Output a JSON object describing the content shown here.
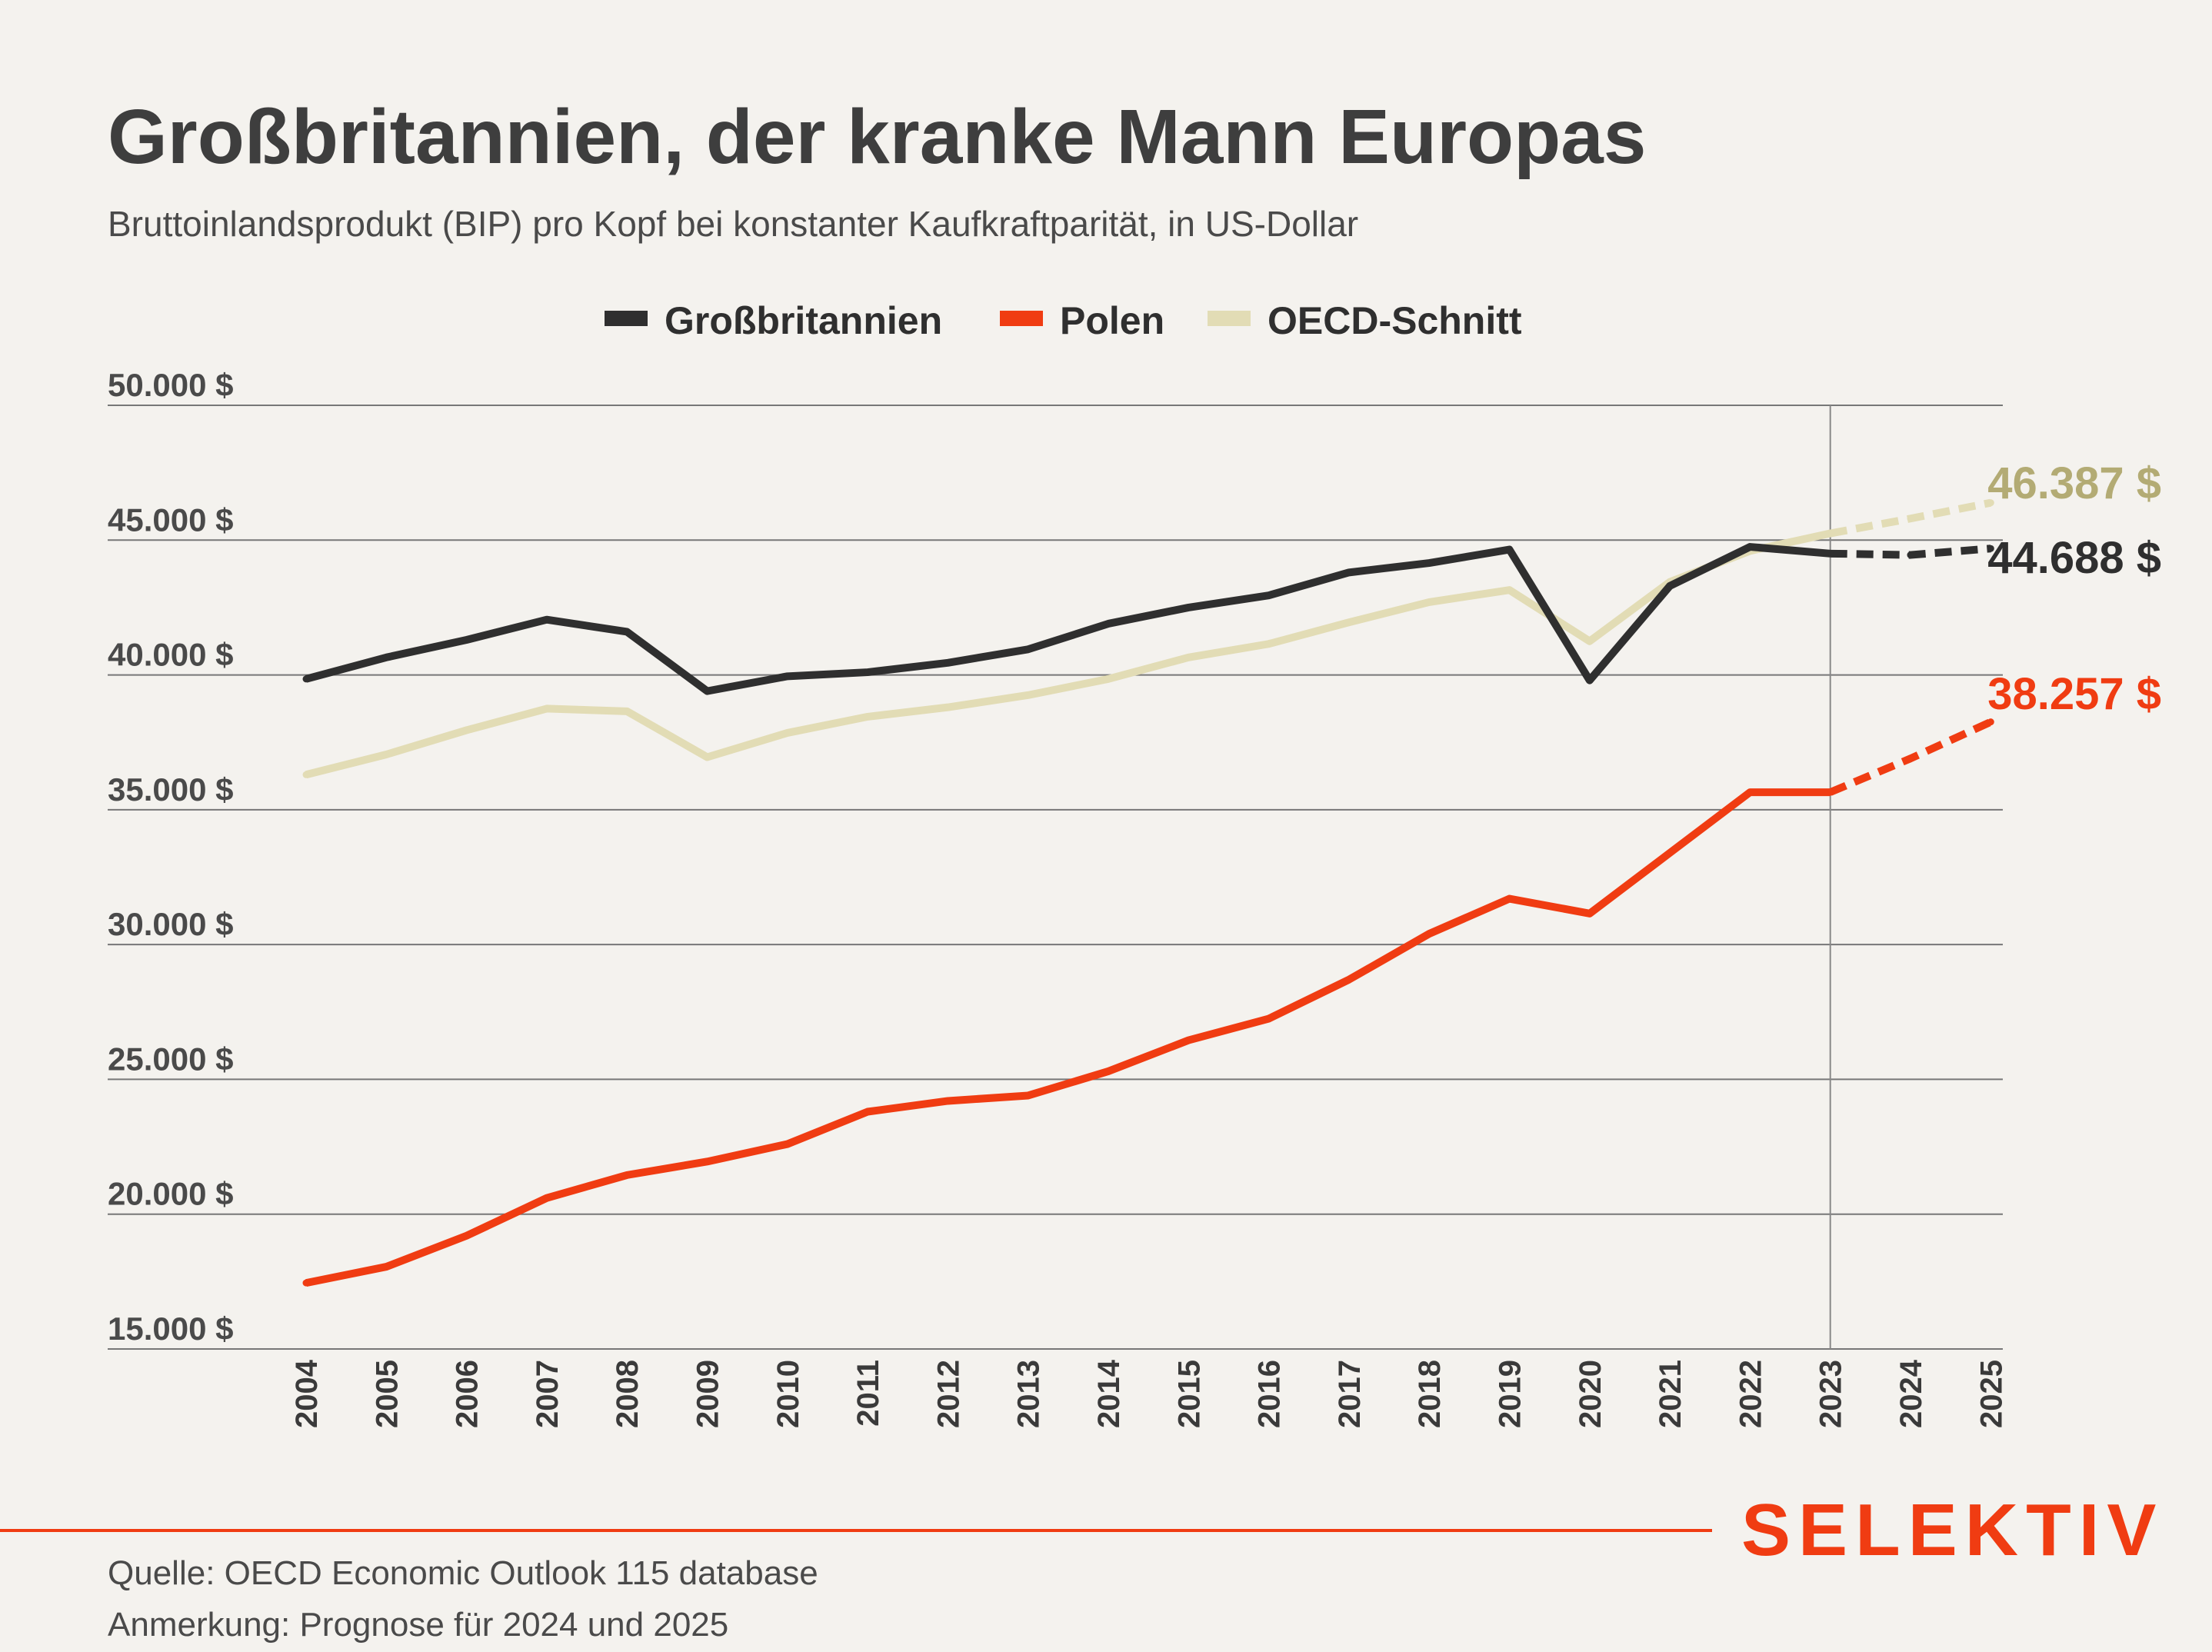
{
  "title": "Großbritannien, der kranke Mann Europas",
  "subtitle": "Bruttoinlandsprodukt (BIP) pro Kopf bei konstanter Kaufkraftparität, in US-Dollar",
  "legend": [
    {
      "label": "Großbritannien",
      "color": "#2f2f2f"
    },
    {
      "label": "Polen",
      "color": "#f03c12"
    },
    {
      "label": "OECD-Schnitt",
      "color": "#e2dcb5"
    }
  ],
  "end_labels": {
    "uk": {
      "text": "44.688 $",
      "color": "#2f2f2f"
    },
    "poland": {
      "text": "38.257 $",
      "color": "#f03c12"
    },
    "oecd": {
      "text": "46.387 $",
      "color": "#b3ab74"
    }
  },
  "footer": {
    "source": "Quelle: OECD Economic Outlook 115 database",
    "note": "Anmerkung: Prognose für 2024 und 2025",
    "brand": "SELEKTIV",
    "brand_color": "#f03c12"
  },
  "chart_data": {
    "type": "line",
    "x": [
      "2004",
      "2005",
      "2006",
      "2007",
      "2008",
      "2009",
      "2010",
      "2011",
      "2012",
      "2013",
      "2014",
      "2015",
      "2016",
      "2017",
      "2018",
      "2019",
      "2020",
      "2021",
      "2022",
      "2023",
      "2024",
      "2025"
    ],
    "forecast_from": "2023",
    "y_ticks": [
      {
        "value": 50000,
        "label": "50.000 $"
      },
      {
        "value": 45000,
        "label": "45.000 $"
      },
      {
        "value": 40000,
        "label": "40.000 $"
      },
      {
        "value": 35000,
        "label": "35.000 $"
      },
      {
        "value": 30000,
        "label": "30.000 $"
      },
      {
        "value": 25000,
        "label": "25.000 $"
      },
      {
        "value": 20000,
        "label": "20.000 $"
      },
      {
        "value": 15000,
        "label": "15.000 $"
      }
    ],
    "ylim": [
      15000,
      50000
    ],
    "series": [
      {
        "key": "oecd",
        "name": "OECD-Schnitt",
        "color": "#e2dcb5",
        "values": [
          36300,
          37050,
          37950,
          38750,
          38650,
          36950,
          37850,
          38450,
          38800,
          39250,
          39850,
          40650,
          41150,
          41950,
          42700,
          43150,
          41250,
          43450,
          44600,
          45250,
          45800,
          46387
        ]
      },
      {
        "key": "uk",
        "name": "Großbritannien",
        "color": "#2f2f2f",
        "values": [
          39850,
          40650,
          41300,
          42050,
          41600,
          39400,
          39950,
          40100,
          40450,
          40950,
          41900,
          42500,
          42950,
          43800,
          44150,
          44650,
          39800,
          43300,
          44750,
          44500,
          44450,
          44688
        ]
      },
      {
        "key": "poland",
        "name": "Polen",
        "color": "#f03c12",
        "values": [
          17450,
          18050,
          19200,
          20600,
          21450,
          21950,
          22600,
          23800,
          24200,
          24400,
          25300,
          26450,
          27250,
          28700,
          30400,
          31700,
          31150,
          33400,
          35650,
          35650,
          36900,
          38257
        ]
      }
    ]
  }
}
